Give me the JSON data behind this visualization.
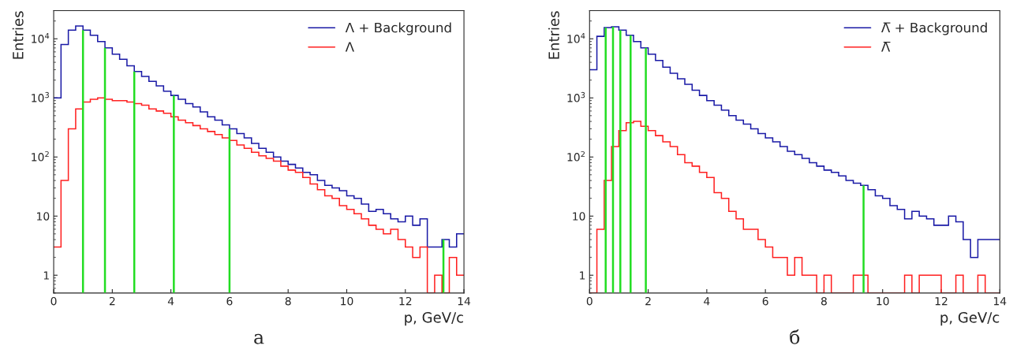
{
  "chart_data": [
    {
      "type": "histogram",
      "xlabel": "p, GeV/c",
      "ylabel": "Entries",
      "annotations": [
        "а"
      ],
      "bins": [
        0,
        0.25,
        0.5,
        0.75,
        1,
        1.25,
        1.5,
        1.75,
        2,
        2.25,
        2.5,
        2.75,
        3,
        3.25,
        3.5,
        3.75,
        4,
        4.25,
        4.5,
        4.75,
        5,
        5.25,
        5.5,
        5.75,
        6,
        6.25,
        6.5,
        6.75,
        7,
        7.25,
        7.5,
        7.75,
        8,
        8.25,
        8.5,
        8.75,
        9,
        9.25,
        9.5,
        9.75,
        10,
        10.25,
        10.5,
        10.75,
        11,
        11.25,
        11.5,
        11.75,
        12,
        12.25,
        12.5,
        12.75,
        13,
        13.25,
        13.5,
        13.75,
        14
      ],
      "series": [
        {
          "name": "Λ + Background",
          "color": "#1a1aa6",
          "values": [
            1000,
            8000,
            14000,
            16500,
            14000,
            11500,
            9000,
            7000,
            5500,
            4500,
            3500,
            2800,
            2300,
            1900,
            1600,
            1300,
            1100,
            950,
            800,
            700,
            580,
            480,
            420,
            350,
            300,
            250,
            210,
            170,
            140,
            120,
            100,
            85,
            75,
            65,
            55,
            50,
            40,
            33,
            30,
            27,
            22,
            20,
            16,
            12,
            13,
            11,
            9,
            8,
            10,
            7,
            9,
            3,
            3,
            4,
            3,
            5
          ]
        },
        {
          "name": "Λ",
          "color": "#ff2020",
          "values": [
            3,
            40,
            300,
            650,
            850,
            950,
            1000,
            950,
            900,
            900,
            850,
            800,
            750,
            650,
            600,
            550,
            480,
            420,
            380,
            340,
            300,
            270,
            240,
            210,
            190,
            160,
            140,
            120,
            105,
            95,
            85,
            70,
            60,
            55,
            45,
            35,
            28,
            22,
            20,
            15,
            13,
            11,
            9,
            7,
            6,
            5,
            6,
            4,
            3,
            2,
            3,
            null,
            1,
            null,
            2,
            1
          ]
        }
      ],
      "ref_lines": [
        {
          "axis": "x",
          "value": 1.0,
          "color": "#22dd22"
        },
        {
          "axis": "x",
          "value": 1.75,
          "color": "#22dd22"
        },
        {
          "axis": "x",
          "value": 2.75,
          "color": "#22dd22"
        },
        {
          "axis": "x",
          "value": 4.1,
          "color": "#22dd22"
        },
        {
          "axis": "x",
          "value": 6.0,
          "color": "#22dd22"
        },
        {
          "axis": "x",
          "value": 13.3,
          "color": "#22dd22"
        }
      ],
      "log": "y",
      "xlim": [
        0,
        14
      ],
      "ylim": [
        0.5,
        30000
      ],
      "xticks": [
        0,
        2,
        4,
        6,
        8,
        10,
        12,
        14
      ],
      "yticks": [
        1,
        10,
        {
          "value": 100,
          "label": "10$^{2}$"
        },
        {
          "value": 1000,
          "label": "10$^{3}$"
        },
        {
          "value": 10000,
          "label": "10$^{4}$"
        }
      ],
      "legend": "top right",
      "grid": false
    },
    {
      "type": "histogram",
      "xlabel": "p, GeV/c",
      "ylabel": "Entries",
      "annotations": [
        "б"
      ],
      "bins": [
        0,
        0.25,
        0.5,
        0.75,
        1,
        1.25,
        1.5,
        1.75,
        2,
        2.25,
        2.5,
        2.75,
        3,
        3.25,
        3.5,
        3.75,
        4,
        4.25,
        4.5,
        4.75,
        5,
        5.25,
        5.5,
        5.75,
        6,
        6.25,
        6.5,
        6.75,
        7,
        7.25,
        7.5,
        7.75,
        8,
        8.25,
        8.5,
        8.75,
        9,
        9.25,
        9.5,
        9.75,
        10,
        10.25,
        10.5,
        10.75,
        11,
        11.25,
        11.5,
        11.75,
        12,
        12.25,
        12.5,
        12.75,
        13,
        13.25,
        13.5,
        13.75,
        14
      ],
      "series": [
        {
          "name": "Λ̅ + Background",
          "color": "#1a1aa6",
          "values": [
            3000,
            11000,
            15500,
            16000,
            14000,
            11500,
            9000,
            7000,
            5500,
            4300,
            3300,
            2600,
            2100,
            1700,
            1350,
            1100,
            900,
            750,
            620,
            500,
            420,
            360,
            300,
            250,
            210,
            180,
            150,
            125,
            110,
            95,
            80,
            70,
            60,
            55,
            48,
            40,
            36,
            33,
            28,
            22,
            20,
            15,
            13,
            9,
            12,
            10,
            9,
            7,
            7,
            10,
            8,
            4,
            2,
            4,
            4,
            4
          ]
        },
        {
          "name": "Λ̅",
          "color": "#ff2020",
          "values": [
            null,
            6,
            40,
            150,
            280,
            380,
            400,
            330,
            280,
            230,
            180,
            150,
            110,
            80,
            70,
            55,
            45,
            25,
            20,
            12,
            9,
            6,
            6,
            4,
            3,
            2,
            2,
            1,
            2,
            1,
            1,
            null,
            1,
            null,
            null,
            null,
            1,
            1,
            null,
            null,
            null,
            null,
            null,
            1,
            null,
            1,
            1,
            1,
            null,
            null,
            1,
            null,
            null,
            1,
            null,
            null
          ]
        }
      ],
      "ref_lines": [
        {
          "axis": "x",
          "value": 0.55,
          "color": "#22dd22"
        },
        {
          "axis": "x",
          "value": 0.8,
          "color": "#22dd22"
        },
        {
          "axis": "x",
          "value": 1.05,
          "color": "#22dd22"
        },
        {
          "axis": "x",
          "value": 1.4,
          "color": "#22dd22"
        },
        {
          "axis": "x",
          "value": 1.92,
          "color": "#22dd22"
        },
        {
          "axis": "x",
          "value": 9.35,
          "color": "#22dd22"
        }
      ],
      "log": "y",
      "xlim": [
        0,
        14
      ],
      "ylim": [
        0.5,
        30000
      ],
      "xticks": [
        0,
        2,
        4,
        6,
        8,
        10,
        12,
        14
      ],
      "yticks": [
        1,
        10,
        {
          "value": 100,
          "label": "10$^{2}$"
        },
        {
          "value": 1000,
          "label": "10$^{3}$"
        },
        {
          "value": 10000,
          "label": "10$^{4}$"
        }
      ],
      "legend": "top right",
      "grid": false
    }
  ]
}
